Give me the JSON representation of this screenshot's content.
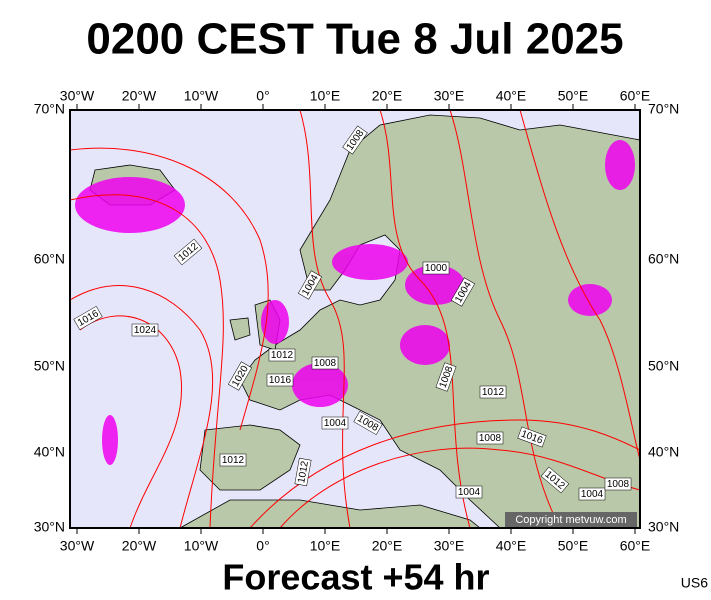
{
  "title": "0200 CEST Tue 8 Jul 2025",
  "lon_labels": [
    "30°W",
    "20°W",
    "10°W",
    "0°",
    "10°E",
    "20°E",
    "30°E",
    "40°E",
    "50°E",
    "60°E"
  ],
  "lat_labels": [
    "70°N",
    "60°N",
    "50°N",
    "40°N",
    "30°N"
  ],
  "isobar_labels": [
    "1008",
    "1012",
    "1016",
    "1024",
    "1004",
    "1000",
    "1004",
    "1012",
    "1008",
    "1016",
    "1020",
    "1008",
    "1012",
    "1004",
    "1008",
    "1008",
    "1016",
    "1012",
    "1012",
    "1012",
    "1004",
    "1004",
    "1008"
  ],
  "copyright": "Copyright metvuw.com",
  "forecast": "Forecast +54 hr",
  "code": "US6"
}
